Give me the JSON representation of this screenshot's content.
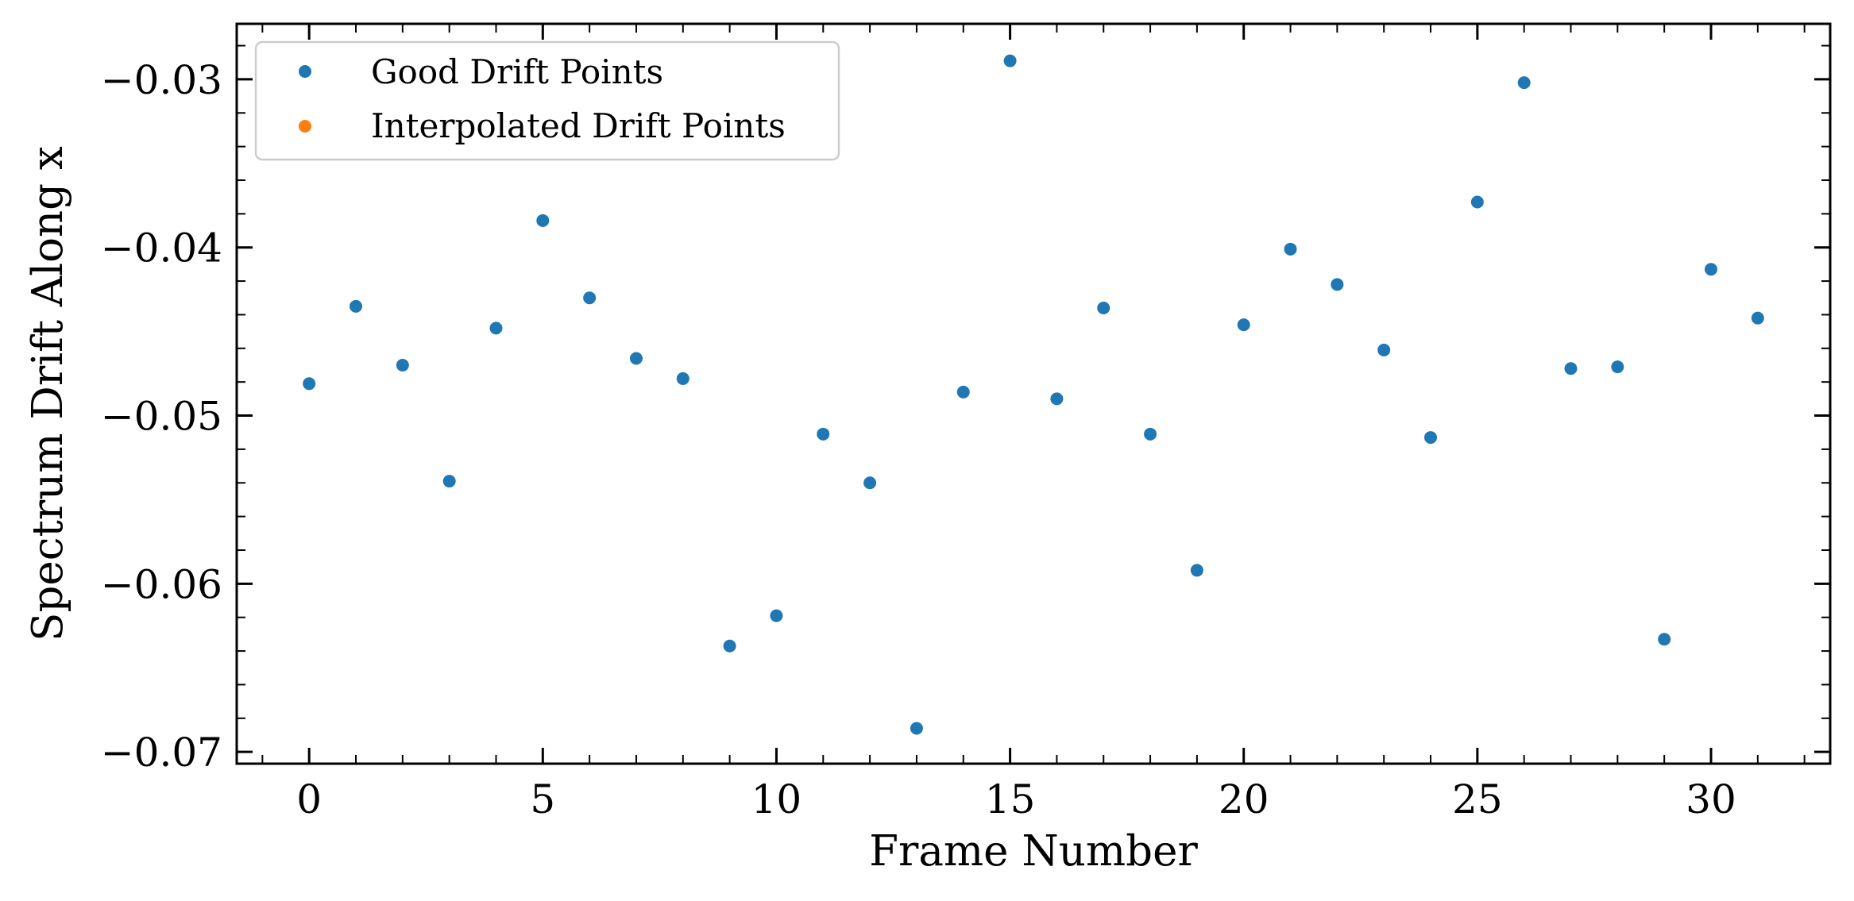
{
  "chart_data": {
    "type": "scatter",
    "title": "",
    "xlabel": "Frame Number",
    "ylabel": "Spectrum Drift Along x",
    "xlim": [
      -1.55,
      32.55
    ],
    "ylim": [
      -0.0707,
      -0.0267
    ],
    "x_ticks": [
      0,
      5,
      10,
      15,
      20,
      25,
      30
    ],
    "x_tick_labels": [
      "0",
      "5",
      "10",
      "15",
      "20",
      "25",
      "30"
    ],
    "y_ticks": [
      -0.07,
      -0.06,
      -0.05,
      -0.04,
      -0.03
    ],
    "y_tick_labels": [
      "−0.07",
      "−0.06",
      "−0.05",
      "−0.04",
      "−0.03"
    ],
    "x_minor_step": 1,
    "y_minor_step": 0.002,
    "grid": false,
    "legend_position": "top-left",
    "series": [
      {
        "name": "Good Drift Points",
        "color": "#1f77b4",
        "x": [
          0,
          1,
          2,
          3,
          4,
          5,
          6,
          7,
          8,
          9,
          10,
          11,
          12,
          13,
          14,
          15,
          16,
          17,
          18,
          19,
          20,
          21,
          22,
          23,
          24,
          25,
          26,
          27,
          28,
          29,
          30,
          31
        ],
        "y": [
          -0.0481,
          -0.0435,
          -0.047,
          -0.0539,
          -0.0448,
          -0.0384,
          -0.043,
          -0.0466,
          -0.0478,
          -0.0637,
          -0.0619,
          -0.0511,
          -0.054,
          -0.0686,
          -0.0486,
          -0.0289,
          -0.049,
          -0.0436,
          -0.0511,
          -0.0592,
          -0.0446,
          -0.0401,
          -0.0422,
          -0.0461,
          -0.0513,
          -0.0373,
          -0.0302,
          -0.0472,
          -0.0471,
          -0.0633,
          -0.0413,
          -0.0442
        ]
      },
      {
        "name": "Interpolated Drift Points",
        "color": "#ff7f0e",
        "x": [],
        "y": []
      }
    ]
  }
}
